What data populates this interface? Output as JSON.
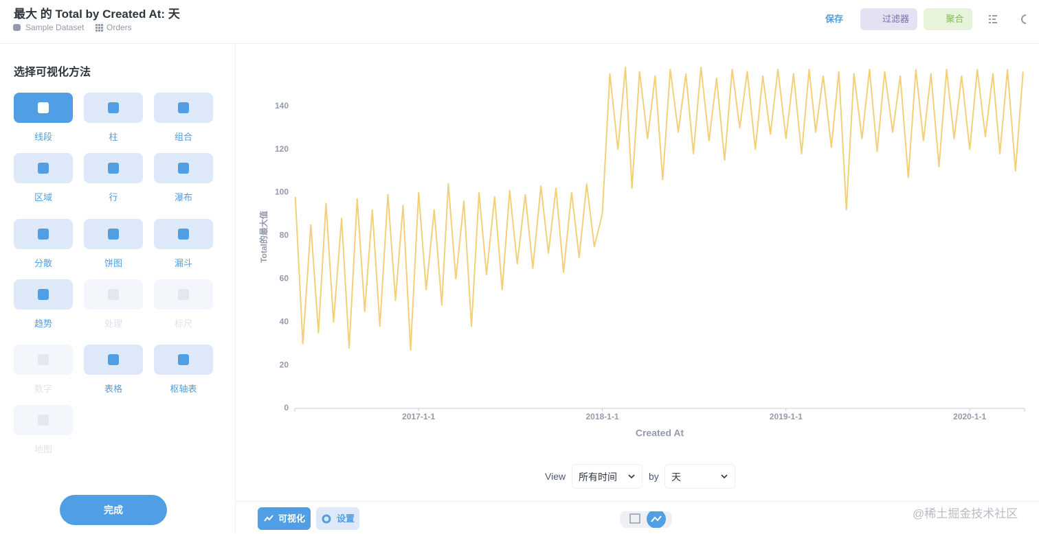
{
  "header": {
    "title": "最大 的 Total by Created At: 天",
    "breadcrumbs": [
      "Sample Dataset",
      "Orders"
    ],
    "actions": [
      "保存",
      "过滤器",
      "聚合"
    ]
  },
  "sidebar": {
    "title": "选择可视化方法",
    "options": [
      {
        "label": "线段",
        "active": true
      },
      {
        "label": "柱"
      },
      {
        "label": "组合"
      },
      {
        "label": "区域"
      },
      {
        "label": "行"
      },
      {
        "label": "瀑布"
      },
      {
        "label": "分散"
      },
      {
        "label": "饼图"
      },
      {
        "label": "漏斗"
      },
      {
        "label": "趋势"
      },
      {
        "label": "处理",
        "disabled": true
      },
      {
        "label": "标尺",
        "disabled": true
      },
      {
        "label": "数字",
        "disabled": true
      },
      {
        "label": "表格"
      },
      {
        "label": "枢轴表"
      },
      {
        "label": "地图",
        "disabled": true
      }
    ],
    "done": "完成"
  },
  "chart_data": {
    "type": "line",
    "xlabel": "Created At",
    "ylabel": "Total的最大值",
    "color": "#f3d077",
    "grid": false,
    "x": [
      "2016-5-1",
      "2016-5-16",
      "2016-6-1",
      "2016-6-16",
      "2016-7-1",
      "2016-7-16",
      "2016-8-1",
      "2016-8-16",
      "2016-9-1",
      "2016-9-16",
      "2016-10-1",
      "2016-10-16",
      "2016-11-1",
      "2016-11-16",
      "2016-12-1",
      "2016-12-16",
      "2017-1-1",
      "2017-1-16",
      "2017-2-1",
      "2017-2-16",
      "2017-3-1",
      "2017-3-16",
      "2017-4-1",
      "2017-4-16",
      "2017-5-1",
      "2017-5-16",
      "2017-6-1",
      "2017-6-16",
      "2017-7-1",
      "2017-7-16",
      "2017-8-1",
      "2017-8-16",
      "2017-9-1",
      "2017-9-16",
      "2017-10-1",
      "2017-10-16",
      "2017-11-1",
      "2017-11-16",
      "2017-12-1",
      "2017-12-16",
      "2018-1-1",
      "2018-1-16",
      "2018-2-1",
      "2018-2-16",
      "2018-3-1",
      "2018-3-16",
      "2018-4-1",
      "2018-4-16",
      "2018-5-1",
      "2018-5-16",
      "2018-6-1",
      "2018-6-16",
      "2018-7-1",
      "2018-7-16",
      "2018-8-1",
      "2018-8-16",
      "2018-9-1",
      "2018-9-16",
      "2018-10-1",
      "2018-10-16",
      "2018-11-1",
      "2018-11-16",
      "2018-12-1",
      "2018-12-16",
      "2019-1-1",
      "2019-1-16",
      "2019-2-1",
      "2019-2-16",
      "2019-3-1",
      "2019-3-16",
      "2019-4-1",
      "2019-4-16",
      "2019-5-1",
      "2019-5-16",
      "2019-6-1",
      "2019-6-16",
      "2019-7-1",
      "2019-7-16",
      "2019-8-1",
      "2019-8-16",
      "2019-9-1",
      "2019-9-16",
      "2019-10-1",
      "2019-10-16",
      "2019-11-1",
      "2019-11-16",
      "2019-12-1",
      "2019-12-16",
      "2020-1-1",
      "2020-1-16",
      "2020-2-1",
      "2020-2-16",
      "2020-3-1",
      "2020-3-16",
      "2020-4-1",
      "2020-4-16"
    ],
    "values": [
      98,
      30,
      85,
      35,
      95,
      40,
      88,
      28,
      97,
      45,
      92,
      38,
      99,
      50,
      94,
      27,
      100,
      55,
      92,
      48,
      104,
      60,
      96,
      38,
      100,
      62,
      98,
      55,
      101,
      67,
      99,
      65,
      103,
      72,
      102,
      63,
      100,
      70,
      104,
      75,
      90,
      155,
      120,
      158,
      102,
      156,
      125,
      154,
      106,
      157,
      128,
      155,
      118,
      158,
      124,
      153,
      115,
      157,
      130,
      156,
      120,
      154,
      127,
      157,
      125,
      155,
      118,
      157,
      128,
      154,
      121,
      156,
      92,
      155,
      125,
      157,
      119,
      156,
      128,
      154,
      107,
      157,
      124,
      155,
      112,
      157,
      125,
      154,
      120,
      157,
      126,
      155,
      118,
      157,
      110,
      156
    ],
    "xlim": [
      "2016-4-30",
      "2020-4-19"
    ],
    "xticks": [
      "2017-1-1",
      "2018-1-1",
      "2019-1-1",
      "2020-1-1"
    ],
    "ylim": [
      0,
      159
    ],
    "yticks": [
      0,
      20,
      40,
      60,
      80,
      100,
      120,
      140
    ]
  },
  "controls": {
    "view": "View",
    "period": "所有时间",
    "by": "by",
    "unit": "天"
  },
  "footer": {
    "buttons": [
      "可视化",
      "设置"
    ],
    "watermark": "@稀土掘金技术社区"
  }
}
